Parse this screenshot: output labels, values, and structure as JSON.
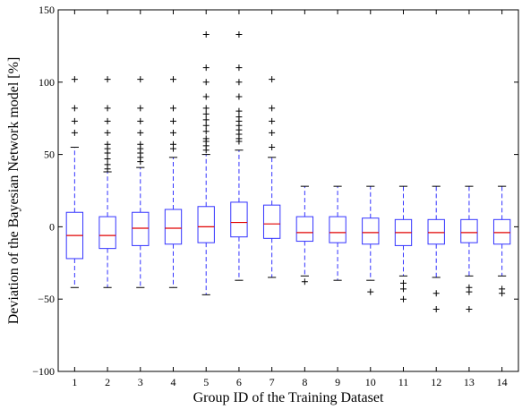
{
  "chart_data": {
    "type": "boxplot",
    "xlabel": "Group ID of the Training Dataset",
    "ylabel": "Deviation of the Bayesian Network model [%]",
    "ylim": [
      -100,
      150
    ],
    "yticks": [
      "−100",
      "−50",
      "0",
      "50",
      "100",
      "150"
    ],
    "ytick_values": [
      -100,
      -50,
      0,
      50,
      100,
      150
    ],
    "categories": [
      "1",
      "2",
      "3",
      "4",
      "5",
      "6",
      "7",
      "8",
      "9",
      "10",
      "11",
      "12",
      "13",
      "14"
    ],
    "boxes": [
      {
        "group": "1",
        "whisker_low": -42,
        "q1": -22,
        "median": -6,
        "q3": 10,
        "whisker_high": 55,
        "outliers": [
          65,
          73,
          82,
          102
        ]
      },
      {
        "group": "2",
        "whisker_low": -42,
        "q1": -15,
        "median": -6,
        "q3": 7,
        "whisker_high": 38,
        "outliers": [
          40,
          43,
          47,
          51,
          54,
          57,
          65,
          73,
          82,
          102
        ]
      },
      {
        "group": "3",
        "whisker_low": -42,
        "q1": -13,
        "median": -1,
        "q3": 10,
        "whisker_high": 41,
        "outliers": [
          45,
          48,
          51,
          54,
          57,
          65,
          73,
          82,
          102
        ]
      },
      {
        "group": "4",
        "whisker_low": -42,
        "q1": -12,
        "median": -1,
        "q3": 12,
        "whisker_high": 48,
        "outliers": [
          54,
          57,
          65,
          73,
          82,
          102
        ]
      },
      {
        "group": "5",
        "whisker_low": -47,
        "q1": -11,
        "median": 0,
        "q3": 14,
        "whisker_high": 50,
        "outliers": [
          53,
          56,
          59,
          61,
          66,
          70,
          74,
          78,
          82,
          90,
          100,
          110,
          133
        ]
      },
      {
        "group": "6",
        "whisker_low": -37,
        "q1": -7,
        "median": 3,
        "q3": 17,
        "whisker_high": 53,
        "outliers": [
          59,
          61,
          64,
          67,
          70,
          73,
          76,
          80,
          90,
          100,
          110,
          133
        ]
      },
      {
        "group": "7",
        "whisker_low": -35,
        "q1": -8,
        "median": 2,
        "q3": 15,
        "whisker_high": 48,
        "outliers": [
          55,
          65,
          73,
          82,
          102
        ]
      },
      {
        "group": "8",
        "whisker_low": -34,
        "q1": -10,
        "median": -4,
        "q3": 7,
        "whisker_high": 28,
        "outliers": [
          -38
        ]
      },
      {
        "group": "9",
        "whisker_low": -37,
        "q1": -11,
        "median": -4,
        "q3": 7,
        "whisker_high": 28,
        "outliers": []
      },
      {
        "group": "10",
        "whisker_low": -37,
        "q1": -12,
        "median": -4,
        "q3": 6,
        "whisker_high": 28,
        "outliers": [
          -45
        ]
      },
      {
        "group": "11",
        "whisker_low": -34,
        "q1": -13,
        "median": -4,
        "q3": 5,
        "whisker_high": 28,
        "outliers": [
          -39,
          -43,
          -50
        ]
      },
      {
        "group": "12",
        "whisker_low": -35,
        "q1": -12,
        "median": -4,
        "q3": 5,
        "whisker_high": 28,
        "outliers": [
          -46,
          -57
        ]
      },
      {
        "group": "13",
        "whisker_low": -34,
        "q1": -11,
        "median": -4,
        "q3": 5,
        "whisker_high": 28,
        "outliers": [
          -42,
          -45,
          -57
        ]
      },
      {
        "group": "14",
        "whisker_low": -34,
        "q1": -12,
        "median": -4,
        "q3": 5,
        "whisker_high": 28,
        "outliers": [
          -43,
          -46
        ]
      }
    ],
    "colors": {
      "box": "#3333ff",
      "median": "#e00000",
      "outlier": "#000000",
      "axis": "#000000"
    },
    "grid": false
  }
}
